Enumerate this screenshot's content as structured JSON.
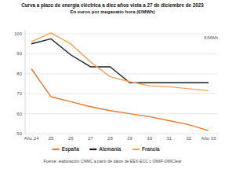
{
  "chart_data": {
    "type": "line",
    "title": "Curva a plazo de energía eléctrica a diez años vista a 27 de diciembre de 2023",
    "subtitle": "En euros por megavatio hora (€/MWh)",
    "y_label": "€/MWh",
    "source": "Fuente: elaboración CNMC a partir de datos de EEX-ECC y OMIP-OMIClear",
    "categories": [
      "Año 24",
      "25",
      "26",
      "27",
      "28",
      "29",
      "30",
      "31",
      "32",
      "Año 33"
    ],
    "series": [
      {
        "name": "España",
        "color": "#e8772e",
        "values": [
          82.5,
          68.5,
          66,
          63.5,
          61.5,
          60,
          58.5,
          56.5,
          54.5,
          51.5
        ]
      },
      {
        "name": "Alemania",
        "color": "#1a1a1a",
        "values": [
          95,
          97.5,
          89.5,
          83.5,
          83.5,
          75.5,
          75.5,
          75.5,
          75.5,
          75.5
        ]
      },
      {
        "name": "Francia",
        "color": "#f5a35c",
        "values": [
          96,
          100.5,
          95,
          86,
          78.5,
          76,
          74,
          73.5,
          72.5,
          71.5
        ]
      }
    ],
    "ylim": [
      50,
      102
    ],
    "yticks": [
      50,
      60,
      70,
      80,
      90,
      100
    ],
    "grid": true,
    "legend": "bottom"
  }
}
